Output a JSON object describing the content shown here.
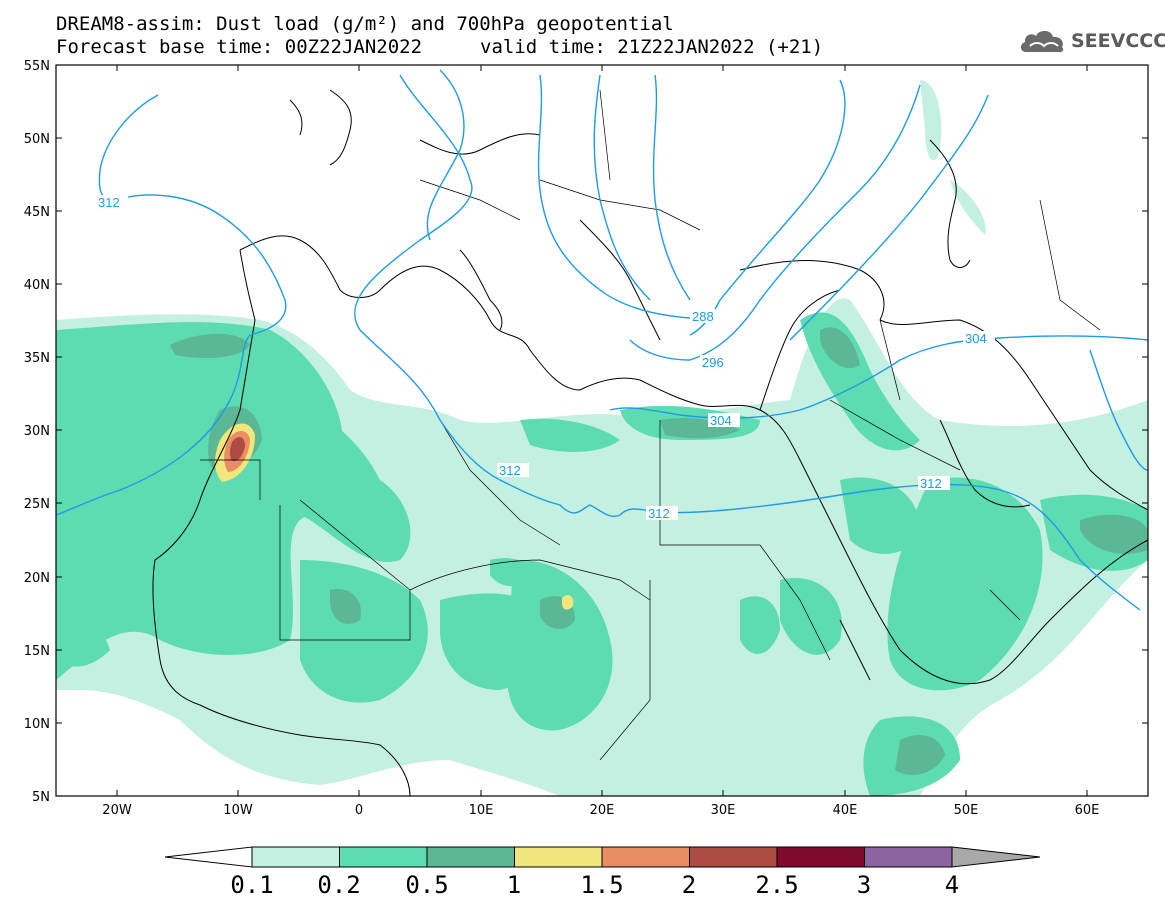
{
  "header": {
    "title": "DREAM8-assim: Dust load (g/m²) and 700hPa geopotential",
    "base_time": "Forecast base time: 00Z22JAN2022",
    "valid_time": "valid time: 21Z22JAN2022 (+21)",
    "logo_text": "SEEVCCC",
    "logo_icon": "cloud-logo-icon"
  },
  "axes": {
    "lat_labels": [
      "55N",
      "50N",
      "45N",
      "40N",
      "35N",
      "30N",
      "25N",
      "20N",
      "15N",
      "10N",
      "5N"
    ],
    "lon_labels": [
      "20W",
      "10W",
      "0",
      "10E",
      "20E",
      "30E",
      "40E",
      "50E",
      "60E"
    ]
  },
  "contours": {
    "labels": [
      "312",
      "288",
      "296",
      "304",
      "304",
      "312",
      "312",
      "312"
    ],
    "color": "#1e9be6"
  },
  "colorbar": {
    "labels": [
      "0.1",
      "0.2",
      "0.5",
      "1",
      "1.5",
      "2",
      "2.5",
      "3",
      "4"
    ],
    "colors": [
      "#c4f0e2",
      "#5cdcb0",
      "#5cb894",
      "#f0e67c",
      "#ea8c64",
      "#ac4c44",
      "#7e0a2e",
      "#8c64a0"
    ],
    "under_color": "#ffffff",
    "over_color": "#a8a8a8"
  }
}
